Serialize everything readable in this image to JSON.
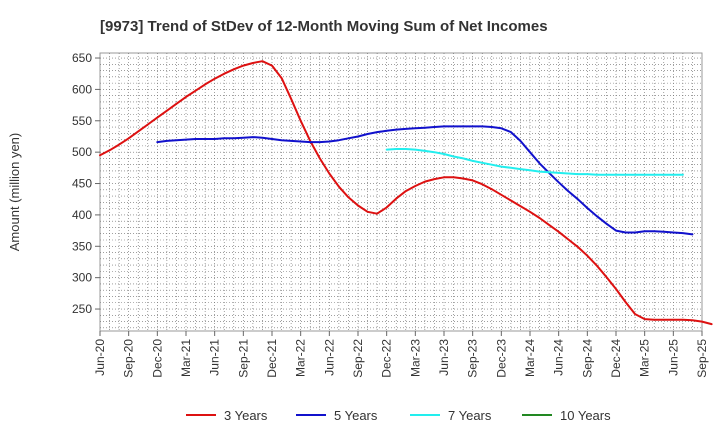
{
  "chart_data": {
    "type": "line",
    "title": "[9973]  Trend of StDev of 12-Month Moving Sum of Net Incomes",
    "ylabel": "Amount (million yen)",
    "xlabel": "",
    "ylim": [
      215,
      658
    ],
    "yticks": [
      250,
      300,
      350,
      400,
      450,
      500,
      550,
      600,
      650
    ],
    "x_start": "Jun-20",
    "xtick_labels": [
      "Jun-20",
      "Sep-20",
      "Dec-20",
      "Mar-21",
      "Jun-21",
      "Sep-21",
      "Dec-21",
      "Mar-22",
      "Jun-22",
      "Sep-22",
      "Dec-22",
      "Mar-23",
      "Jun-23",
      "Sep-23",
      "Dec-23",
      "Mar-24",
      "Jun-24",
      "Sep-24",
      "Dec-24",
      "Mar-25",
      "Jun-25",
      "Sep-25"
    ],
    "grid": true,
    "legend_position": "bottom",
    "series": [
      {
        "name": "3 Years",
        "color": "#dd1111",
        "start": "Jun-20",
        "values": [
          495,
          503,
          512,
          522,
          533,
          544,
          555,
          566,
          577,
          588,
          598,
          608,
          617,
          625,
          632,
          638,
          642,
          645,
          638,
          618,
          585,
          550,
          518,
          490,
          466,
          445,
          428,
          415,
          405,
          402,
          412,
          426,
          438,
          446,
          453,
          457,
          460,
          460,
          458,
          455,
          449,
          441,
          432,
          423,
          414,
          405,
          395,
          384,
          373,
          361,
          349,
          335,
          319,
          301,
          282,
          261,
          242,
          234,
          233,
          233,
          233,
          233,
          232,
          230,
          226
        ]
      },
      {
        "name": "5 Years",
        "color": "#1111cc",
        "start": "Dec-20",
        "values": [
          516,
          518,
          519,
          520,
          521,
          521,
          521,
          522,
          522,
          523,
          524,
          523,
          521,
          519,
          518,
          517,
          516,
          516,
          517,
          519,
          522,
          525,
          529,
          532,
          534,
          536,
          537,
          538,
          539,
          540,
          541,
          541,
          541,
          541,
          541,
          540,
          538,
          532,
          518,
          500,
          482,
          467,
          452,
          438,
          425,
          411,
          398,
          386,
          375,
          372,
          372,
          374,
          374,
          373,
          372,
          371,
          369
        ]
      },
      {
        "name": "7 Years",
        "color": "#22eeee",
        "start": "Dec-22",
        "values": [
          504,
          505,
          505,
          504,
          502,
          500,
          497,
          493,
          490,
          486,
          483,
          480,
          477,
          475,
          473,
          471,
          469,
          468,
          467,
          466,
          465,
          465,
          464,
          464,
          464,
          464,
          464,
          464,
          464,
          464,
          464,
          464
        ]
      },
      {
        "name": "10 Years",
        "color": "#228822",
        "start": "Sep-25",
        "values": []
      }
    ]
  }
}
